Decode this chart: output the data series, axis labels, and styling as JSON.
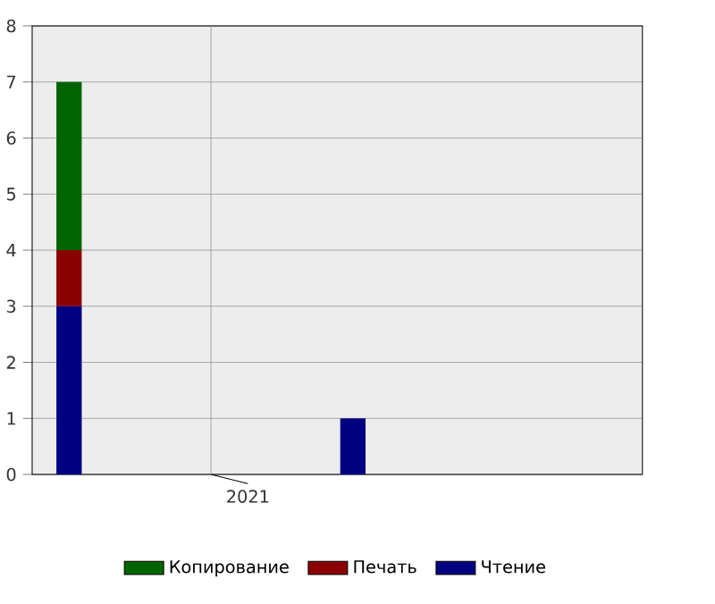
{
  "chart_data": {
    "type": "bar",
    "stacked": true,
    "categories": [
      null,
      null
    ],
    "ylim": [
      0,
      8
    ],
    "yticks": [
      0,
      1,
      2,
      3,
      4,
      5,
      6,
      7,
      8
    ],
    "grid": true,
    "legend": "bottom",
    "annotations": [
      "2021"
    ],
    "series": [
      {
        "name": "Чтение",
        "color": "#000080",
        "values": [
          3,
          1
        ]
      },
      {
        "name": "Печать",
        "color": "#8b0000",
        "values": [
          1,
          null
        ]
      },
      {
        "name": "Копирование",
        "color": "#006400",
        "values": [
          3,
          null
        ]
      }
    ]
  }
}
